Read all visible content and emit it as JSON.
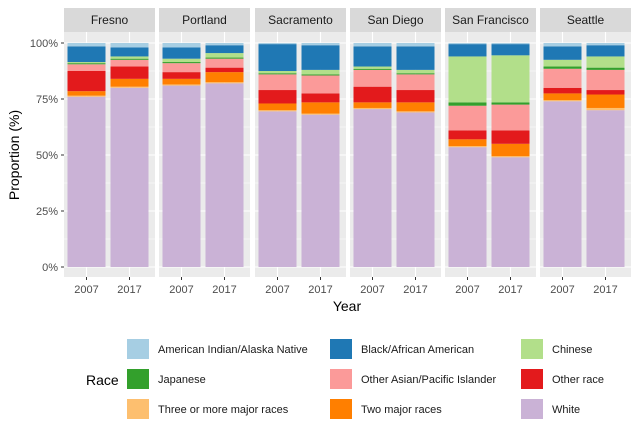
{
  "chart_data": {
    "type": "bar",
    "stacked": true,
    "xlabel": "Year",
    "ylabel": "Proportion (%)",
    "y_ticks": [
      "0%",
      "25%",
      "50%",
      "75%",
      "100%"
    ],
    "ylim": [
      0,
      1
    ],
    "x_categories": [
      "2007",
      "2017"
    ],
    "legend_title": "Race",
    "legend_position": "bottom",
    "stack_order_bottom_to_top": [
      "White",
      "Three or more major races",
      "Two major races",
      "Other race",
      "Other Asian/Pacific Islander",
      "Japanese",
      "Chinese",
      "Black/African American",
      "American Indian/Alaska Native"
    ],
    "legend_order": [
      "American Indian/Alaska Native",
      "Black/African American",
      "Chinese",
      "Japanese",
      "Other Asian/Pacific Islander",
      "Other race",
      "Three or more major races",
      "Two major races",
      "White"
    ],
    "colors": {
      "American Indian/Alaska Native": "#a6cee3",
      "Black/African American": "#1f78b4",
      "Chinese": "#b2df8a",
      "Japanese": "#33a02c",
      "Other Asian/Pacific Islander": "#fb9a99",
      "Other race": "#e31a1c",
      "Three or more major races": "#fdbf6f",
      "Two major races": "#ff7f00",
      "White": "#cab2d6"
    },
    "panels": [
      {
        "city": "Fresno",
        "bars": [
          {
            "year": "2007",
            "values": {
              "White": 0.76,
              "Three or more major races": 0.005,
              "Two major races": 0.02,
              "Other race": 0.09,
              "Other Asian/Pacific Islander": 0.03,
              "Japanese": 0.005,
              "Chinese": 0.005,
              "Black/African American": 0.07,
              "American Indian/Alaska Native": 0.015
            }
          },
          {
            "year": "2017",
            "values": {
              "White": 0.8,
              "Three or more major races": 0.005,
              "Two major races": 0.035,
              "Other race": 0.055,
              "Other Asian/Pacific Islander": 0.03,
              "Japanese": 0.005,
              "Chinese": 0.01,
              "Black/African American": 0.04,
              "American Indian/Alaska Native": 0.02
            }
          }
        ]
      },
      {
        "city": "Portland",
        "bars": [
          {
            "year": "2007",
            "values": {
              "White": 0.81,
              "Three or more major races": 0.005,
              "Two major races": 0.025,
              "Other race": 0.03,
              "Other Asian/Pacific Islander": 0.04,
              "Japanese": 0.005,
              "Chinese": 0.015,
              "Black/African American": 0.05,
              "American Indian/Alaska Native": 0.02
            }
          },
          {
            "year": "2017",
            "values": {
              "White": 0.82,
              "Three or more major races": 0.005,
              "Two major races": 0.045,
              "Other race": 0.02,
              "Other Asian/Pacific Islander": 0.04,
              "Japanese": 0.005,
              "Chinese": 0.02,
              "Black/African American": 0.035,
              "American Indian/Alaska Native": 0.01
            }
          }
        ]
      },
      {
        "city": "Sacramento",
        "bars": [
          {
            "year": "2007",
            "values": {
              "White": 0.695,
              "Three or more major races": 0.005,
              "Two major races": 0.03,
              "Other race": 0.06,
              "Other Asian/Pacific Islander": 0.07,
              "Japanese": 0.005,
              "Chinese": 0.01,
              "Black/African American": 0.12,
              "American Indian/Alaska Native": 0.005
            }
          },
          {
            "year": "2017",
            "values": {
              "White": 0.68,
              "Three or more major races": 0.005,
              "Two major races": 0.05,
              "Other race": 0.04,
              "Other Asian/Pacific Islander": 0.08,
              "Japanese": 0.005,
              "Chinese": 0.02,
              "Black/African American": 0.11,
              "American Indian/Alaska Native": 0.01
            }
          }
        ]
      },
      {
        "city": "San Diego",
        "bars": [
          {
            "year": "2007",
            "values": {
              "White": 0.705,
              "Three or more major races": 0.005,
              "Two major races": 0.025,
              "Other race": 0.07,
              "Other Asian/Pacific Islander": 0.075,
              "Japanese": 0.005,
              "Chinese": 0.01,
              "Black/African American": 0.09,
              "American Indian/Alaska Native": 0.015
            }
          },
          {
            "year": "2017",
            "values": {
              "White": 0.69,
              "Three or more major races": 0.005,
              "Two major races": 0.04,
              "Other race": 0.055,
              "Other Asian/Pacific Islander": 0.07,
              "Japanese": 0.005,
              "Chinese": 0.015,
              "Black/African American": 0.105,
              "American Indian/Alaska Native": 0.015
            }
          }
        ]
      },
      {
        "city": "San Francisco",
        "bars": [
          {
            "year": "2007",
            "values": {
              "White": 0.535,
              "Three or more major races": 0.005,
              "Two major races": 0.03,
              "Other race": 0.04,
              "Other Asian/Pacific Islander": 0.11,
              "Japanese": 0.015,
              "Chinese": 0.205,
              "Black/African American": 0.055,
              "American Indian/Alaska Native": 0.005
            }
          },
          {
            "year": "2017",
            "values": {
              "White": 0.49,
              "Three or more major races": 0.005,
              "Two major races": 0.055,
              "Other race": 0.06,
              "Other Asian/Pacific Islander": 0.115,
              "Japanese": 0.01,
              "Chinese": 0.21,
              "Black/African American": 0.05,
              "American Indian/Alaska Native": 0.005
            }
          }
        ]
      },
      {
        "city": "Seattle",
        "bars": [
          {
            "year": "2007",
            "values": {
              "White": 0.74,
              "Three or more major races": 0.005,
              "Two major races": 0.03,
              "Other race": 0.025,
              "Other Asian/Pacific Islander": 0.085,
              "Japanese": 0.01,
              "Chinese": 0.03,
              "Black/African American": 0.06,
              "American Indian/Alaska Native": 0.015
            }
          },
          {
            "year": "2017",
            "values": {
              "White": 0.7,
              "Three or more major races": 0.01,
              "Two major races": 0.06,
              "Other race": 0.02,
              "Other Asian/Pacific Islander": 0.09,
              "Japanese": 0.01,
              "Chinese": 0.05,
              "Black/African American": 0.05,
              "American Indian/Alaska Native": 0.01
            }
          }
        ]
      }
    ]
  }
}
